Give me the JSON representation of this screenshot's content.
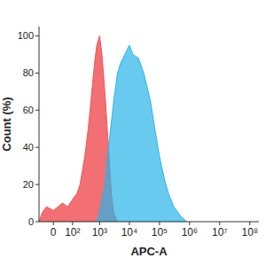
{
  "chart_data": {
    "type": "area",
    "x_label": "APC-A",
    "y_label": "Count (%)",
    "log": "x",
    "xlim": [
      -60,
      200000000
    ],
    "xticks": [
      0,
      {
        "value": 100,
        "label": "10²"
      },
      {
        "value": 1000,
        "label": "10³"
      },
      {
        "value": 10000,
        "label": "10⁴"
      },
      {
        "value": 100000,
        "label": "10⁵"
      },
      {
        "value": 1000000,
        "label": "10⁶"
      },
      {
        "value": 10000000,
        "label": "10⁷"
      },
      {
        "value": 100000000,
        "label": "10⁸"
      }
    ],
    "ylim": [
      0,
      105
    ],
    "yticks": [
      0,
      20,
      40,
      60,
      80,
      100
    ],
    "series": [
      {
        "color": "#f0565a",
        "x": [
          -60,
          -40,
          -20,
          0,
          30,
          60,
          100,
          150,
          200,
          300,
          400,
          500,
          600,
          700,
          800,
          1000,
          1200,
          1500,
          2000,
          2500,
          3000,
          4000
        ],
        "values": [
          0,
          5,
          8,
          6,
          10,
          8,
          12,
          15,
          20,
          35,
          50,
          65,
          78,
          88,
          95,
          100,
          90,
          70,
          40,
          15,
          5,
          0
        ]
      },
      {
        "color": "#2ab4e8",
        "x": [
          800,
          1000,
          1500,
          2000,
          3000,
          4000,
          5000,
          7000,
          10000,
          13000,
          20000,
          30000,
          50000,
          70000,
          100000,
          150000,
          200000,
          300000,
          500000,
          800000
        ],
        "values": [
          0,
          5,
          20,
          40,
          65,
          80,
          85,
          90,
          95,
          90,
          88,
          80,
          65,
          50,
          35,
          22,
          15,
          8,
          3,
          0
        ]
      }
    ]
  }
}
